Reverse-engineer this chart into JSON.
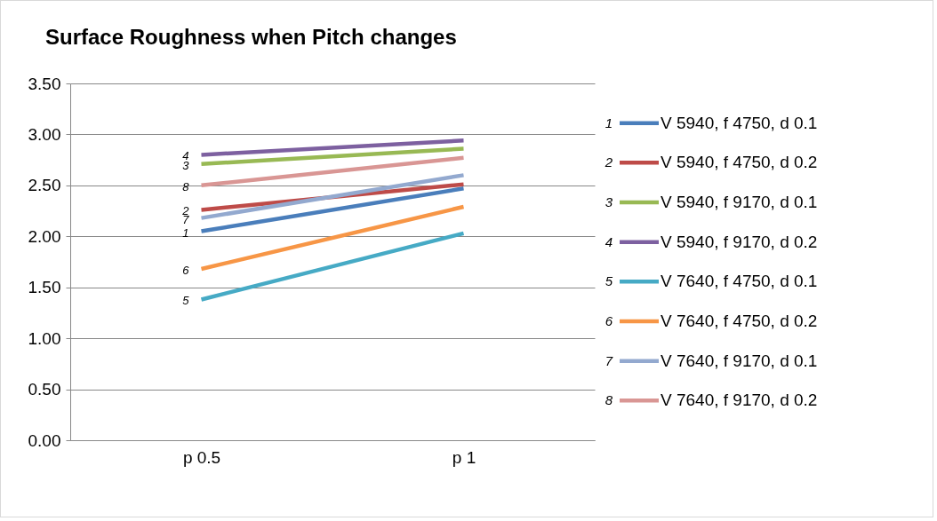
{
  "chart_data": {
    "type": "line",
    "title": "Surface Roughness when Pitch changes",
    "categories": [
      "p 0.5",
      "p 1"
    ],
    "series": [
      {
        "name": "V 5940, f 4750, d 0.1",
        "color": "#4a7ebb",
        "values": [
          2.05,
          2.47
        ]
      },
      {
        "name": "V 5940, f 4750, d 0.2",
        "color": "#be4b48",
        "values": [
          2.26,
          2.51
        ]
      },
      {
        "name": "V 5940, f 9170, d 0.1",
        "color": "#98b954",
        "values": [
          2.71,
          2.86
        ]
      },
      {
        "name": "V 5940, f 9170, d 0.2",
        "color": "#7d60a0",
        "values": [
          2.8,
          2.94
        ]
      },
      {
        "name": "V 7640, f 4750, d 0.1",
        "color": "#46aac5",
        "values": [
          1.38,
          2.03
        ]
      },
      {
        "name": "V 7640, f 4750, d 0.2",
        "color": "#f79646",
        "values": [
          1.68,
          2.29
        ]
      },
      {
        "name": "V 7640, f 9170, d 0.1",
        "color": "#93a9cf",
        "values": [
          2.18,
          2.6
        ]
      },
      {
        "name": "V 7640, f 9170, d 0.2",
        "color": "#d99694",
        "values": [
          2.5,
          2.77
        ]
      }
    ],
    "annotations": [
      {
        "text": "1",
        "x": "p 0.5",
        "y": 2.05
      },
      {
        "text": "2",
        "x": "p 0.5",
        "y": 2.26
      },
      {
        "text": "3",
        "x": "p 0.5",
        "y": 2.71
      },
      {
        "text": "4",
        "x": "p 0.5",
        "y": 2.8
      },
      {
        "text": "5",
        "x": "p 0.5",
        "y": 1.38
      },
      {
        "text": "6",
        "x": "p 0.5",
        "y": 1.68
      },
      {
        "text": "7",
        "x": "p 0.5",
        "y": 2.18
      },
      {
        "text": "8",
        "x": "p 0.5",
        "y": 2.5
      }
    ],
    "ylim": [
      0,
      3.5
    ],
    "yticks": [
      {
        "value": 0,
        "label": "0.00"
      },
      {
        "value": 0.5,
        "label": "0.50"
      },
      {
        "value": 1,
        "label": "1.00"
      },
      {
        "value": 1.5,
        "label": "1.50"
      },
      {
        "value": 2,
        "label": "2.00"
      },
      {
        "value": 2.5,
        "label": "2.50"
      },
      {
        "value": 3,
        "label": "3.00"
      },
      {
        "value": 3.5,
        "label": "3.50"
      }
    ],
    "grid": "y",
    "legend": "right",
    "marker": "none",
    "line_style": "solid"
  }
}
